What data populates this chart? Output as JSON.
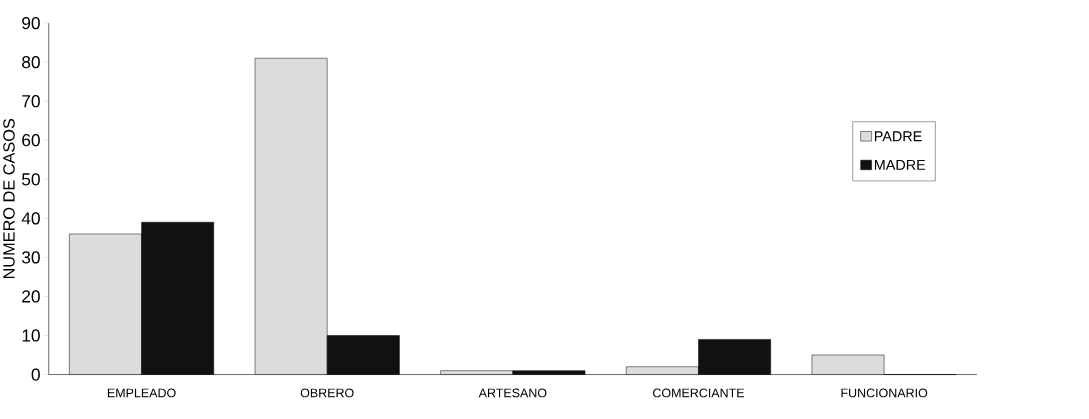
{
  "chart_data": {
    "type": "bar",
    "ylabel": "NUMERO DE CASOS",
    "categories": [
      "EMPLEADO",
      "OBRERO",
      "ARTESANO",
      "COMERCIANTE",
      "FUNCIONARIO"
    ],
    "series": [
      {
        "name": "PADRE",
        "color": "#dcdcdc",
        "values": [
          36,
          81,
          1,
          2,
          5
        ]
      },
      {
        "name": "MADRE",
        "color": "#111111",
        "values": [
          39,
          10,
          1,
          9,
          0
        ]
      }
    ],
    "ylim": [
      0,
      90
    ],
    "yticks": [
      0,
      10,
      20,
      30,
      40,
      50,
      60,
      70,
      80,
      90
    ],
    "legend": "right",
    "grid": false
  }
}
